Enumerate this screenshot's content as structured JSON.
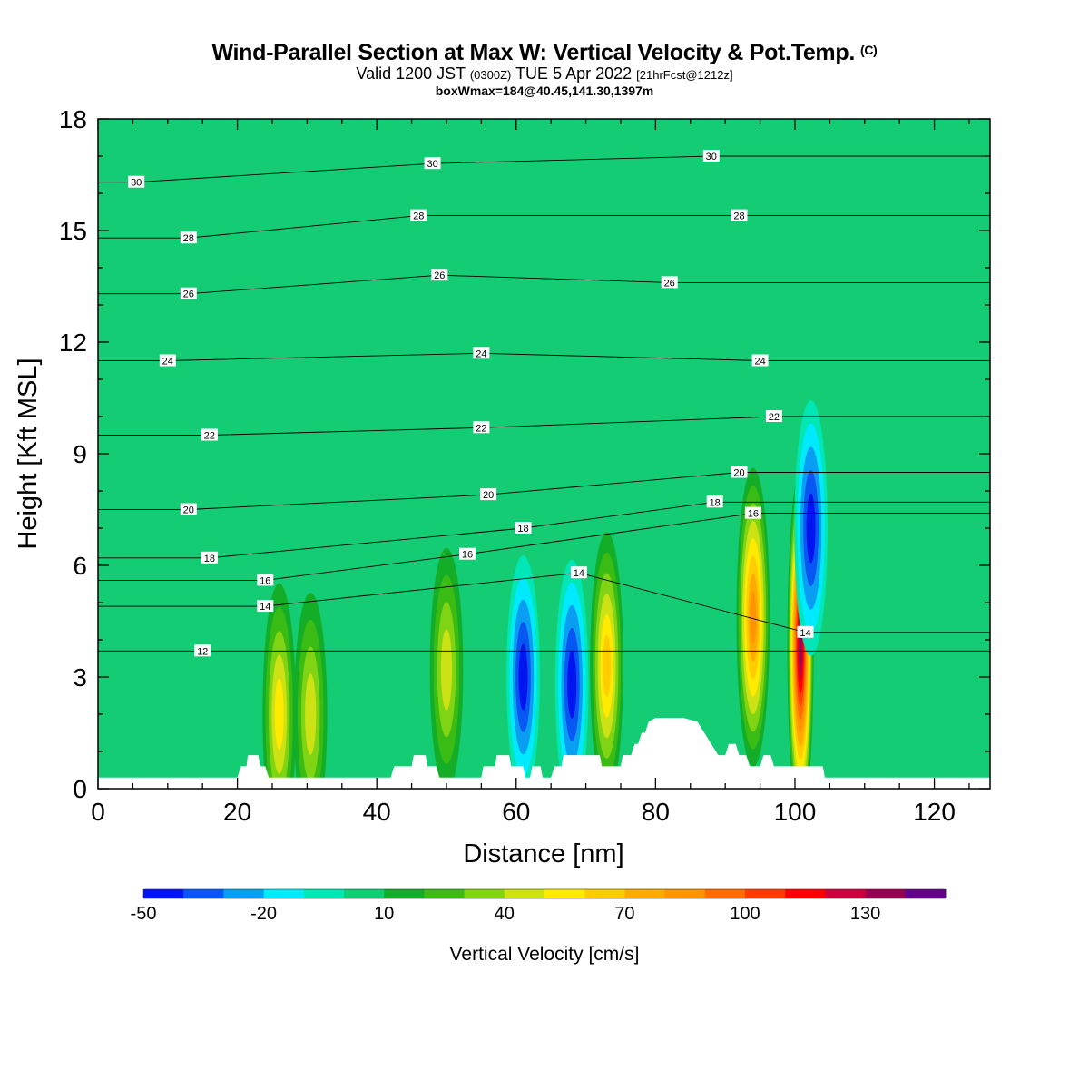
{
  "title": {
    "main": "Wind-Parallel Section at Max W: Vertical Velocity & Pot.Temp.",
    "mark": "(C)",
    "valid_prefix": "Valid 1200 JST",
    "valid_utc": "(0300Z)",
    "valid_date": "TUE 5 Apr 2022",
    "forecast": "[21hrFcst@1212z]",
    "box_info": "boxWmax=184@40.45,141.30,1397m"
  },
  "chart_data": {
    "type": "heatmap",
    "xlabel": "Distance [nm]",
    "ylabel": "Height [Kft MSL]",
    "xlim": [
      0,
      128
    ],
    "ylim": [
      0,
      18
    ],
    "x_ticks": [
      0,
      20,
      40,
      60,
      80,
      100,
      120
    ],
    "y_ticks": [
      0,
      3,
      6,
      9,
      12,
      15,
      18
    ],
    "background_value": 0,
    "updrafts": [
      {
        "x": 26,
        "z": 2.0,
        "w": 55
      },
      {
        "x": 30.5,
        "z": 2.0,
        "w": 40
      },
      {
        "x": 50,
        "z": 3.2,
        "w": 40
      },
      {
        "x": 73,
        "z": 3.3,
        "w": 60
      },
      {
        "x": 94,
        "z": 4.6,
        "w": 85
      },
      {
        "x": 100.8,
        "z": 3.8,
        "w": 130
      }
    ],
    "downdrafts": [
      {
        "x": 61,
        "z": 3.0,
        "w": -40
      },
      {
        "x": 68,
        "z": 2.8,
        "w": -45
      },
      {
        "x": 102.3,
        "z": 7.0,
        "w": -50
      }
    ],
    "theta_contours": [
      {
        "value": "30",
        "label_at": [
          [
            5.5,
            16.3
          ],
          [
            48,
            16.8
          ],
          [
            88,
            17.0
          ]
        ]
      },
      {
        "value": "28",
        "label_at": [
          [
            13,
            14.8
          ],
          [
            46,
            15.4
          ],
          [
            92,
            15.4
          ]
        ]
      },
      {
        "value": "26",
        "label_at": [
          [
            13,
            13.3
          ],
          [
            49,
            13.8
          ],
          [
            82,
            13.6
          ]
        ]
      },
      {
        "value": "24",
        "label_at": [
          [
            10,
            11.5
          ],
          [
            55,
            11.7
          ],
          [
            95,
            11.5
          ]
        ]
      },
      {
        "value": "22",
        "label_at": [
          [
            16,
            9.5
          ],
          [
            55,
            9.7
          ],
          [
            97,
            10.0
          ]
        ]
      },
      {
        "value": "20",
        "label_at": [
          [
            13,
            7.5
          ],
          [
            56,
            7.9
          ],
          [
            92,
            8.5
          ]
        ]
      },
      {
        "value": "18",
        "label_at": [
          [
            16,
            6.2
          ],
          [
            61,
            7.0
          ],
          [
            88.5,
            7.7
          ]
        ]
      },
      {
        "value": "16",
        "label_at": [
          [
            24,
            5.6
          ],
          [
            53,
            6.3
          ],
          [
            94,
            7.4
          ]
        ]
      },
      {
        "value": "14",
        "label_at": [
          [
            24,
            4.9
          ],
          [
            69,
            5.8
          ],
          [
            101.5,
            4.2
          ]
        ]
      },
      {
        "value": "12",
        "label_at": [
          [
            15,
            3.7
          ]
        ]
      }
    ],
    "terrain": [
      [
        0,
        0.3
      ],
      [
        20,
        0.3
      ],
      [
        20.5,
        0.6
      ],
      [
        21.3,
        0.6
      ],
      [
        21.5,
        0.9
      ],
      [
        23,
        0.9
      ],
      [
        23.3,
        0.6
      ],
      [
        24,
        0.6
      ],
      [
        24.5,
        0.3
      ],
      [
        42,
        0.3
      ],
      [
        42.5,
        0.6
      ],
      [
        45,
        0.6
      ],
      [
        45.3,
        0.9
      ],
      [
        47,
        0.9
      ],
      [
        47.3,
        0.6
      ],
      [
        48.5,
        0.6
      ],
      [
        49,
        0.3
      ],
      [
        55,
        0.3
      ],
      [
        55.3,
        0.6
      ],
      [
        57,
        0.6
      ],
      [
        57.2,
        0.9
      ],
      [
        59,
        0.9
      ],
      [
        59.3,
        0.6
      ],
      [
        61,
        0.6
      ],
      [
        61.3,
        0.3
      ],
      [
        62,
        0.3
      ],
      [
        62.3,
        0.6
      ],
      [
        63.5,
        0.6
      ],
      [
        63.8,
        0.3
      ],
      [
        65,
        0.3
      ],
      [
        65.5,
        0.6
      ],
      [
        66.5,
        0.6
      ],
      [
        66.8,
        0.9
      ],
      [
        72,
        0.9
      ],
      [
        72.3,
        0.6
      ],
      [
        75,
        0.6
      ],
      [
        75.3,
        0.9
      ],
      [
        76.5,
        0.9
      ],
      [
        77,
        1.2
      ],
      [
        77.5,
        1.2
      ],
      [
        78,
        1.5
      ],
      [
        78.5,
        1.5
      ],
      [
        79,
        1.8
      ],
      [
        80,
        1.9
      ],
      [
        84,
        1.9
      ],
      [
        86,
        1.8
      ],
      [
        87,
        1.5
      ],
      [
        88,
        1.2
      ],
      [
        89,
        0.9
      ],
      [
        90,
        0.9
      ],
      [
        90.5,
        1.2
      ],
      [
        91.5,
        1.2
      ],
      [
        92,
        0.9
      ],
      [
        93,
        0.9
      ],
      [
        93.5,
        0.6
      ],
      [
        95,
        0.6
      ],
      [
        95.5,
        0.9
      ],
      [
        96.5,
        0.9
      ],
      [
        97,
        0.6
      ],
      [
        104,
        0.6
      ],
      [
        104.3,
        0.3
      ],
      [
        128,
        0.3
      ]
    ],
    "colorbar": {
      "label": "Vertical Velocity [cm/s]",
      "tick_labels": [
        "-50",
        "-20",
        "10",
        "40",
        "70",
        "100",
        "130"
      ],
      "tick_values": [
        -50,
        -20,
        10,
        40,
        70,
        100,
        130
      ],
      "levels": [
        -50,
        -40,
        -30,
        -20,
        -10,
        0,
        10,
        20,
        30,
        40,
        50,
        60,
        70,
        80,
        90,
        100,
        110,
        120,
        130,
        140,
        150
      ],
      "colors": [
        "#0015f0",
        "#0857f2",
        "#0a9ef2",
        "#00eaff",
        "#00e6b4",
        "#14cc74",
        "#13ad28",
        "#3bbc14",
        "#80d414",
        "#cde214",
        "#ffea00",
        "#ffcc00",
        "#ffaa00",
        "#ff9400",
        "#ff6c00",
        "#ff3c00",
        "#ff0000",
        "#c8003c",
        "#960050",
        "#64008c"
      ]
    }
  }
}
